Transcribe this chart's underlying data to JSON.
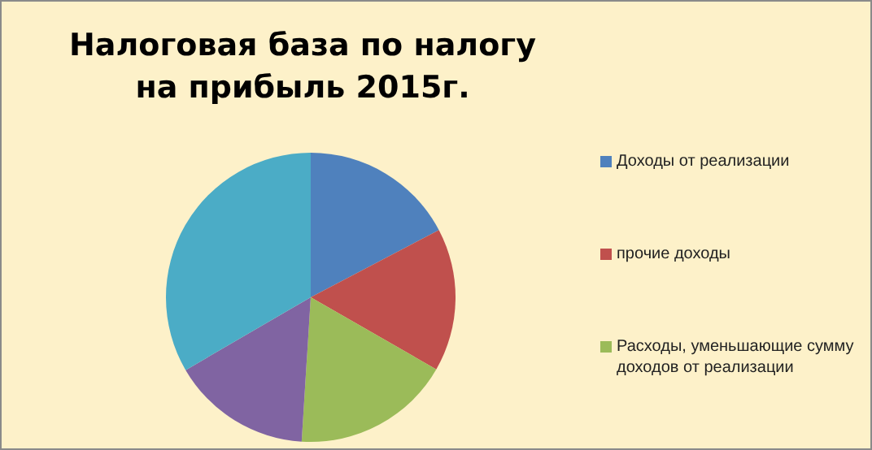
{
  "chart_data": {
    "type": "pie",
    "title": "Налоговая база по налогу на прибыль 2015г.",
    "categories": [
      "Доходы от реализации",
      "прочие доходы",
      "Расходы, уменьшающие сумму доходов от реализации",
      null,
      null
    ],
    "values": [
      17.3,
      16,
      17.7,
      15.6,
      33.4
    ],
    "colors": [
      "#4f81bd",
      "#c0504d",
      "#9bbb59",
      "#8064a2",
      "#4bacc6"
    ],
    "legend": "right"
  }
}
